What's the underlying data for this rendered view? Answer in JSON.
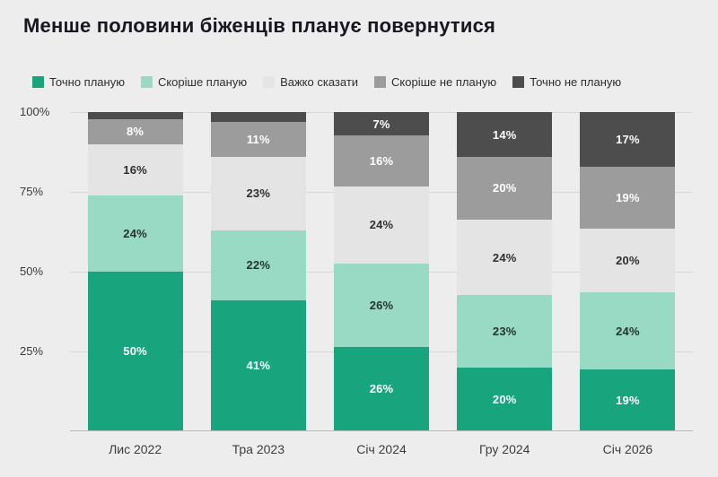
{
  "title": "Менше половини біженців планує повернутися",
  "chart_data": {
    "type": "stacked_bar",
    "title": "Менше половини біженців планує повернутися",
    "categories": [
      "Лис 2022",
      "Тра 2023",
      "Січ 2024",
      "Гру 2024",
      "Січ 2026"
    ],
    "series": [
      {
        "name": "Точно планую",
        "color": "#18a57d",
        "label_color": "#ffffff",
        "values": [
          50,
          41,
          26,
          20,
          19
        ]
      },
      {
        "name": "Скоріше планую",
        "color": "#98dac4",
        "label_color": "#24352e",
        "values": [
          24,
          22,
          26,
          23,
          24
        ]
      },
      {
        "name": "Важко сказати",
        "color": "#e4e4e4",
        "label_color": "#2f2f2f",
        "values": [
          16,
          23,
          24,
          24,
          20
        ]
      },
      {
        "name": "Скоріше не планую",
        "color": "#9c9c9c",
        "label_color": "#ffffff",
        "values": [
          8,
          11,
          16,
          20,
          19
        ]
      },
      {
        "name": "Точно не планую",
        "color": "#4d4d4d",
        "label_color": "#ffffff",
        "values": [
          2,
          3,
          7,
          14,
          17
        ]
      }
    ],
    "y_ticks": [
      "100%",
      "75%",
      "50%",
      "25%"
    ],
    "ylim": [
      0,
      100
    ],
    "min_label_value": 5,
    "grid": true,
    "legend_position": "top"
  }
}
